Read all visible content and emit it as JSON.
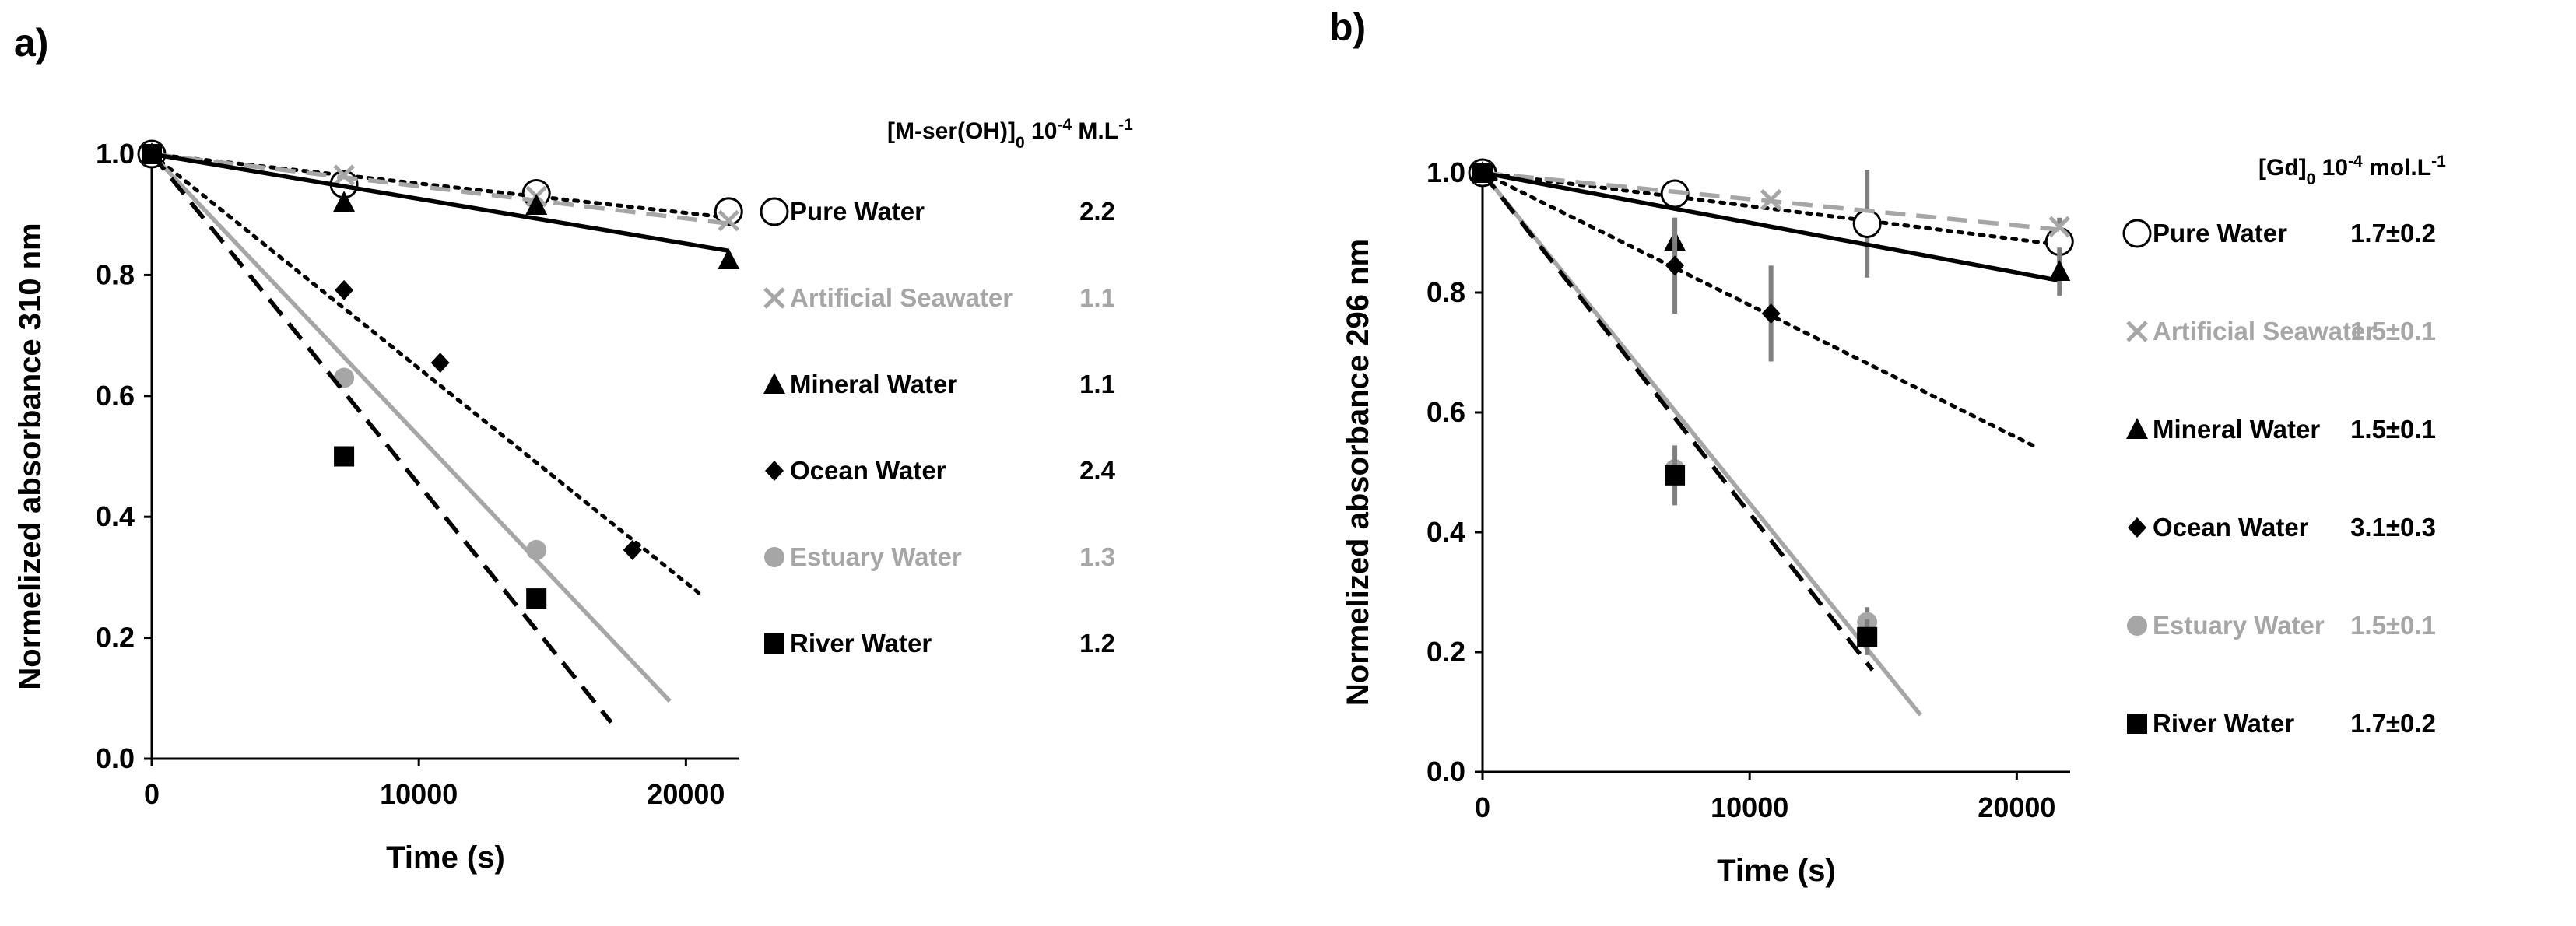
{
  "chart_data": [
    {
      "type": "scatter",
      "panel_label": "a)",
      "xlabel": "Time (s)",
      "ylabel": "Normelized absorbance 310 nm",
      "xlim": [
        0,
        22000
      ],
      "ylim": [
        0,
        1.0
      ],
      "xticks": [
        "0",
        "10000",
        "20000"
      ],
      "yticks": [
        "0.0",
        "0.2",
        "0.4",
        "0.6",
        "0.8",
        "1.0"
      ],
      "legend_title": {
        "main": "[M-ser(OH)]",
        "sub": "0",
        "mid": " 10",
        "sup": "-4",
        "unit": " M.L",
        "unit_sup": "-1"
      },
      "series": [
        {
          "name": "Pure Water",
          "value_label": "2.2",
          "color": "#000000",
          "marker": "circle-open",
          "line": "dotted",
          "points": [
            [
              0,
              1.0
            ],
            [
              7200,
              0.95
            ],
            [
              14400,
              0.935
            ],
            [
              21600,
              0.905
            ]
          ],
          "fit": [
            [
              0,
              1.0
            ],
            [
              21600,
              0.895
            ]
          ]
        },
        {
          "name": "Artificial Seawater",
          "value_label": "1.1",
          "color": "#a6a6a6",
          "marker": "x",
          "line": "dashed",
          "points": [
            [
              0,
              1.0
            ],
            [
              7200,
              0.965
            ],
            [
              14400,
              0.93
            ],
            [
              21600,
              0.89
            ]
          ],
          "fit": [
            [
              0,
              1.0
            ],
            [
              21600,
              0.885
            ]
          ]
        },
        {
          "name": "Mineral Water",
          "value_label": "1.1",
          "color": "#000000",
          "marker": "triangle",
          "line": "solid",
          "points": [
            [
              0,
              1.0
            ],
            [
              7200,
              0.92
            ],
            [
              14400,
              0.915
            ],
            [
              21600,
              0.825
            ]
          ],
          "fit": [
            [
              0,
              1.0
            ],
            [
              21600,
              0.84
            ]
          ]
        },
        {
          "name": "Ocean Water",
          "value_label": "2.4",
          "color": "#000000",
          "marker": "diamond",
          "line": "dotted",
          "points": [
            [
              0,
              1.0
            ],
            [
              7200,
              0.775
            ],
            [
              10800,
              0.655
            ],
            [
              18000,
              0.345
            ]
          ],
          "fit": [
            [
              0,
              1.0
            ],
            [
              20600,
              0.27
            ]
          ]
        },
        {
          "name": "Estuary Water",
          "value_label": "1.3",
          "color": "#a6a6a6",
          "marker": "circle",
          "line": "solid",
          "points": [
            [
              0,
              1.0
            ],
            [
              7200,
              0.63
            ],
            [
              14400,
              0.345
            ]
          ],
          "fit": [
            [
              0,
              1.0
            ],
            [
              19400,
              0.095
            ]
          ]
        },
        {
          "name": "River Water",
          "value_label": "1.2",
          "color": "#000000",
          "marker": "square",
          "line": "dashed",
          "points": [
            [
              0,
              1.0
            ],
            [
              7200,
              0.5
            ],
            [
              14400,
              0.265
            ]
          ],
          "fit": [
            [
              0,
              1.0
            ],
            [
              17200,
              0.06
            ]
          ]
        }
      ]
    },
    {
      "type": "scatter",
      "panel_label": "b)",
      "xlabel": "Time (s)",
      "ylabel": "Normelized absorbance 296 nm",
      "xlim": [
        0,
        22000
      ],
      "ylim": [
        0,
        1.0
      ],
      "xticks": [
        "0",
        "10000",
        "20000"
      ],
      "yticks": [
        "0.0",
        "0.2",
        "0.4",
        "0.6",
        "0.8",
        "1.0"
      ],
      "legend_title": {
        "main": "[Gd]",
        "sub": "0",
        "mid": " 10",
        "sup": "-4",
        "unit": " mol.L",
        "unit_sup": "-1"
      },
      "series": [
        {
          "name": "Pure Water",
          "value_label": "1.7±0.2",
          "color": "#000000",
          "marker": "circle-open",
          "line": "dotted",
          "points": [
            [
              0,
              1.0
            ],
            [
              7200,
              0.965
            ],
            [
              14400,
              0.915
            ],
            [
              21600,
              0.885
            ]
          ],
          "errors": [
            0,
            0,
            0.09,
            0.04
          ],
          "fit": [
            [
              0,
              1.0
            ],
            [
              21600,
              0.88
            ]
          ]
        },
        {
          "name": "Artificial Seawater",
          "value_label": "1.5±0.1",
          "color": "#a6a6a6",
          "marker": "x",
          "line": "dashed",
          "points": [
            [
              0,
              1.0
            ],
            [
              10800,
              0.955
            ],
            [
              21600,
              0.91
            ]
          ],
          "errors": [
            0,
            0,
            0
          ],
          "fit": [
            [
              0,
              1.0
            ],
            [
              21600,
              0.905
            ]
          ]
        },
        {
          "name": "Mineral Water",
          "value_label": "1.5±0.1",
          "color": "#000000",
          "marker": "triangle",
          "line": "solid",
          "points": [
            [
              0,
              1.0
            ],
            [
              7200,
              0.885
            ],
            [
              21600,
              0.835
            ]
          ],
          "errors": [
            0,
            0.04,
            0.04
          ],
          "fit": [
            [
              0,
              1.0
            ],
            [
              21600,
              0.82
            ]
          ]
        },
        {
          "name": "Ocean Water",
          "value_label": "3.1±0.3",
          "color": "#000000",
          "marker": "diamond",
          "line": "dotted",
          "points": [
            [
              0,
              1.0
            ],
            [
              7200,
              0.845
            ],
            [
              10800,
              0.765
            ]
          ],
          "errors": [
            0,
            0.08,
            0.08
          ],
          "fit": [
            [
              0,
              1.0
            ],
            [
              20600,
              0.545
            ]
          ]
        },
        {
          "name": "Estuary Water",
          "value_label": "1.5±0.1",
          "color": "#a6a6a6",
          "marker": "circle",
          "line": "solid",
          "points": [
            [
              0,
              1.0
            ],
            [
              7200,
              0.505
            ],
            [
              14400,
              0.25
            ]
          ],
          "errors": [
            0,
            0,
            0.025
          ],
          "fit": [
            [
              0,
              1.0
            ],
            [
              16400,
              0.095
            ]
          ]
        },
        {
          "name": "River Water",
          "value_label": "1.7±0.2",
          "color": "#000000",
          "marker": "square",
          "line": "dashed",
          "points": [
            [
              0,
              1.0
            ],
            [
              7200,
              0.495
            ],
            [
              14400,
              0.225
            ]
          ],
          "errors": [
            0,
            0.05,
            0.03
          ],
          "fit": [
            [
              0,
              1.0
            ],
            [
              14600,
              0.17
            ]
          ]
        }
      ]
    }
  ]
}
